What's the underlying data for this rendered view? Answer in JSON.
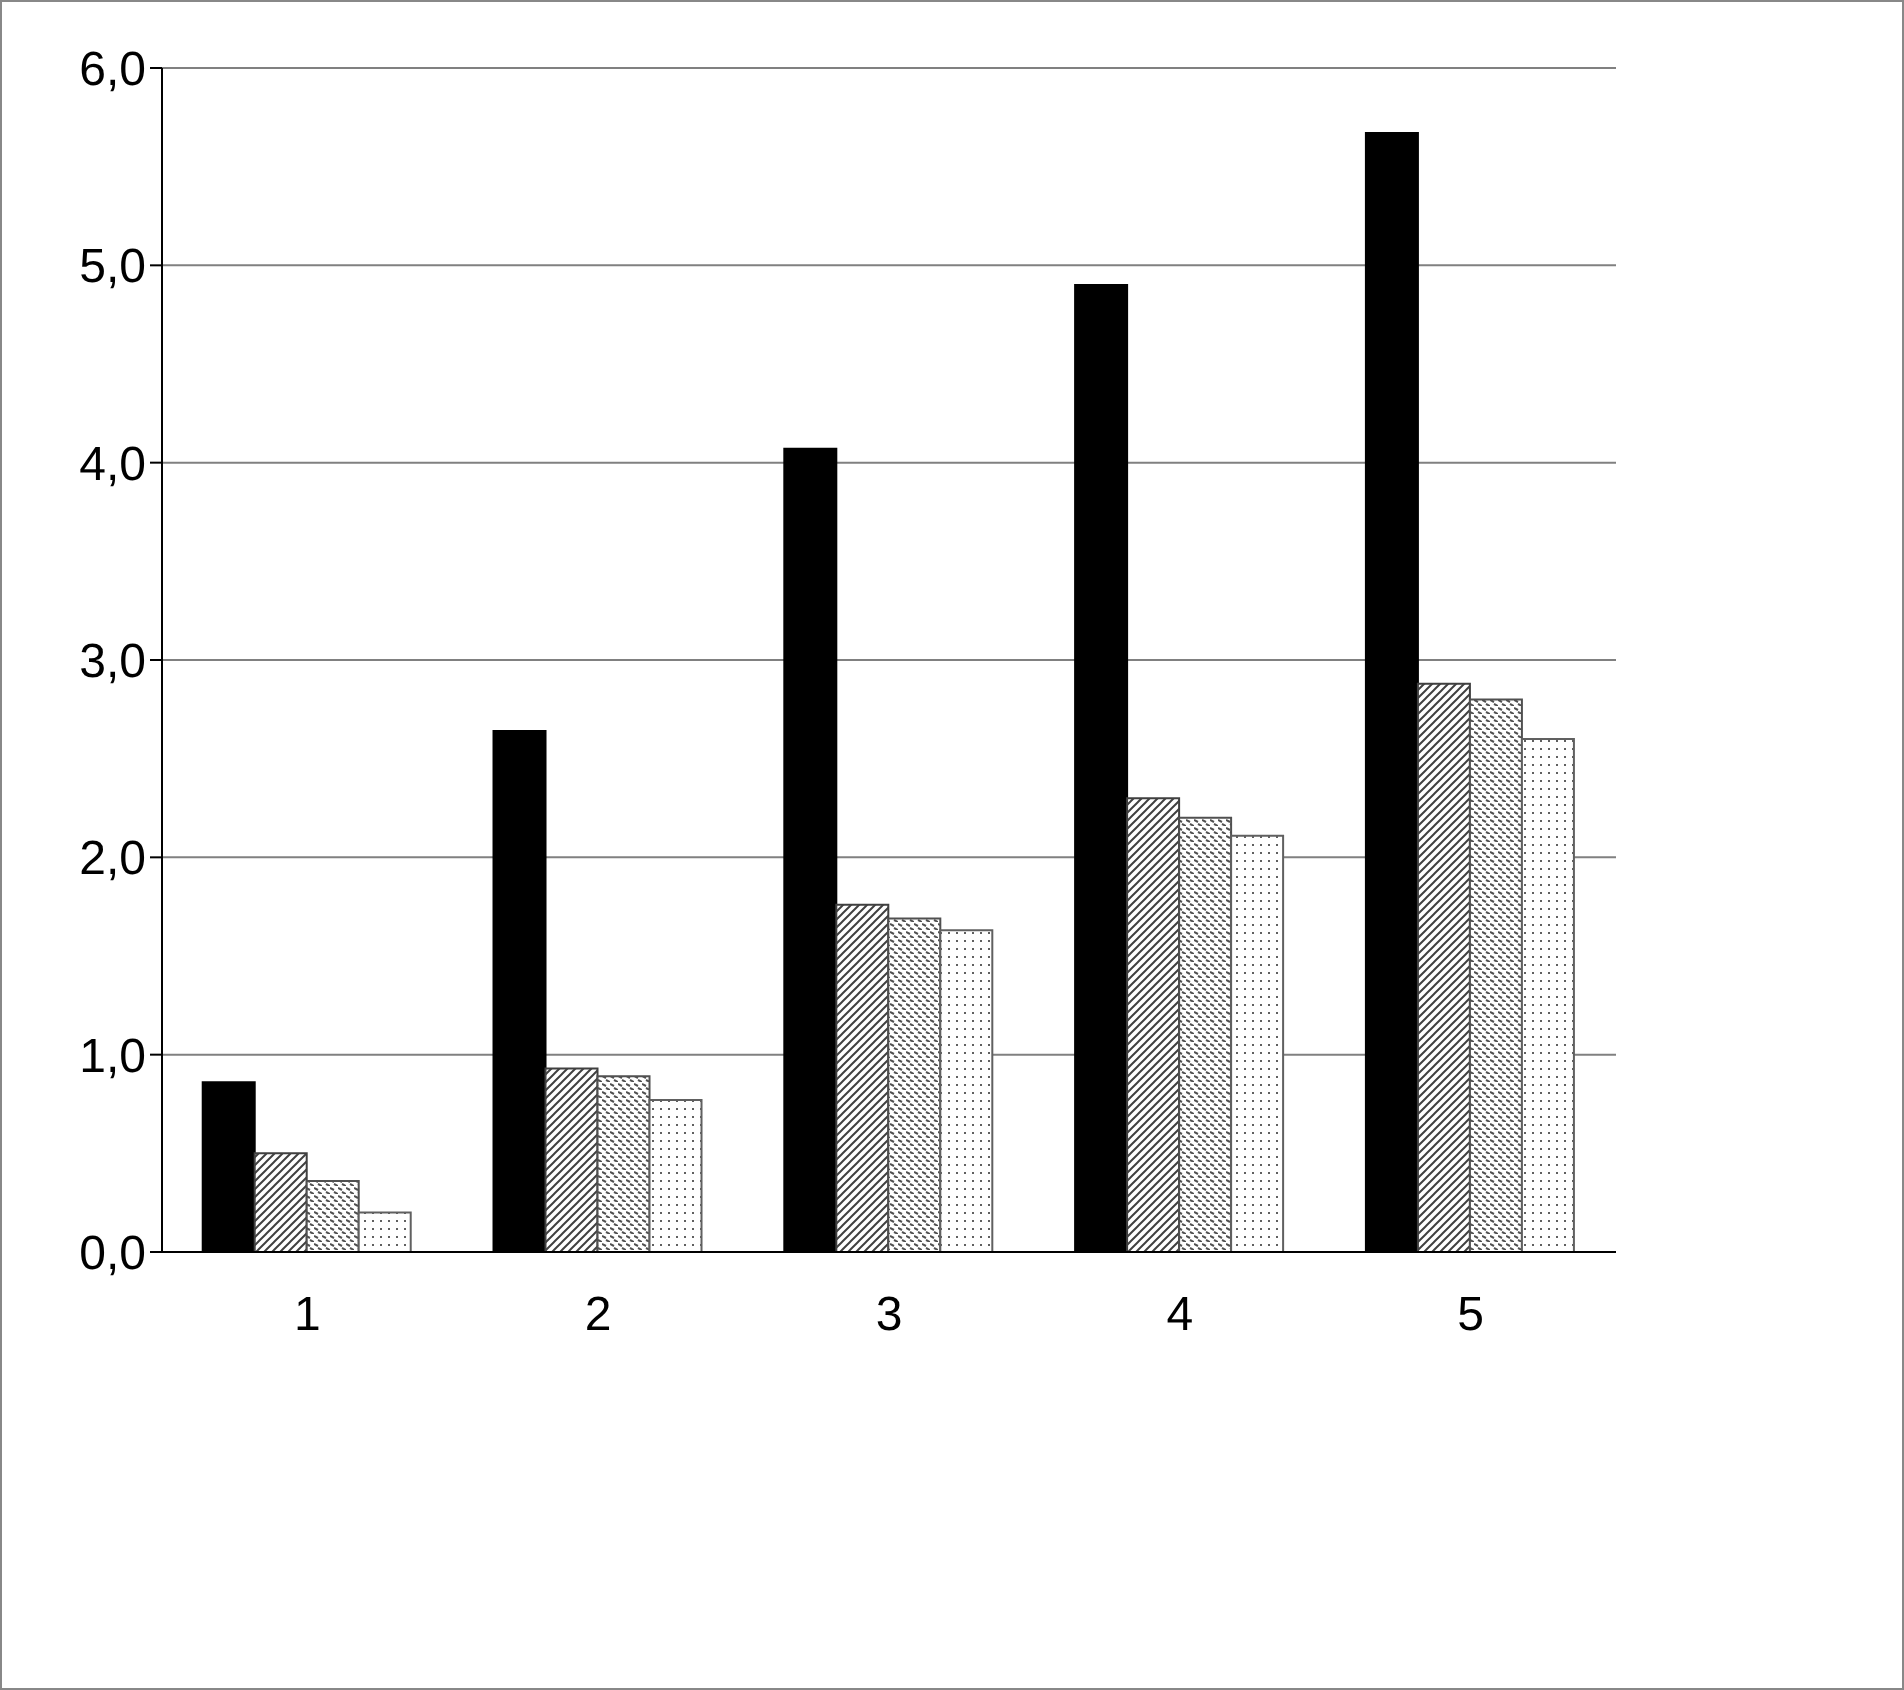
{
  "chart_data": {
    "type": "bar",
    "categories": [
      "1",
      "2",
      "3",
      "4",
      "5"
    ],
    "series": [
      {
        "color": "#000000",
        "values": [
          0.86,
          2.64,
          4.07,
          4.9,
          5.67
        ]
      },
      {
        "color": "#404040",
        "values": [
          0.5,
          0.93,
          1.76,
          2.3,
          2.88
        ]
      },
      {
        "color": "#505050",
        "values": [
          0.36,
          0.89,
          1.69,
          2.2,
          2.8
        ]
      },
      {
        "color": "#606060",
        "values": [
          0.2,
          0.77,
          1.63,
          2.11,
          2.6
        ]
      }
    ],
    "ylim": [
      0,
      6
    ],
    "yticks": [
      {
        "value": 0,
        "label": "0,0"
      },
      {
        "value": 1,
        "label": "1,0"
      },
      {
        "value": 2,
        "label": "2,0"
      },
      {
        "value": 3,
        "label": "3,0"
      },
      {
        "value": 4,
        "label": "4,0"
      },
      {
        "value": 5,
        "label": "5,0"
      },
      {
        "value": 6,
        "label": "6,0"
      }
    ],
    "grid": "y",
    "legend": false
  }
}
